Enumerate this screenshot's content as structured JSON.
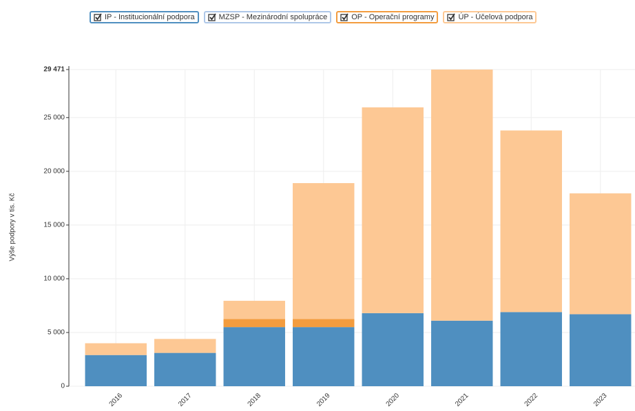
{
  "chart_data": {
    "type": "stacked_bar",
    "y_label": "Výše podpory v tis. Kč",
    "categories": [
      "2016",
      "2017",
      "2018",
      "2019",
      "2020",
      "2021",
      "2022",
      "2023"
    ],
    "series": [
      {
        "name": "IP - Institucionální podpora",
        "color": "#4f8fc0",
        "values": [
          2900,
          3100,
          5500,
          5500,
          6800,
          6100,
          6900,
          6700
        ]
      },
      {
        "name": "MZSP - Mezinárodní spolupráce",
        "color": "#aec7e8",
        "values": [
          0,
          0,
          0,
          0,
          0,
          0,
          0,
          0
        ]
      },
      {
        "name": "OP - Operační programy",
        "color": "#f39c3e",
        "values": [
          0,
          0,
          750,
          750,
          0,
          0,
          0,
          0
        ]
      },
      {
        "name": "ÚP - Účelová podpora",
        "color": "#fdc894",
        "values": [
          1100,
          1300,
          1700,
          12650,
          19150,
          23371,
          16900,
          11250
        ]
      }
    ],
    "ylim": [
      0,
      29471
    ],
    "yticks": [
      0,
      {
        "value": 5000,
        "label": "5 000"
      },
      {
        "value": 10000,
        "label": "10 000"
      },
      {
        "value": 15000,
        "label": "15 000"
      },
      {
        "value": 20000,
        "label": "20 000"
      },
      {
        "value": 25000,
        "label": "25 000"
      },
      {
        "value": 29471,
        "label": "29 471"
      }
    ],
    "grid": true
  }
}
